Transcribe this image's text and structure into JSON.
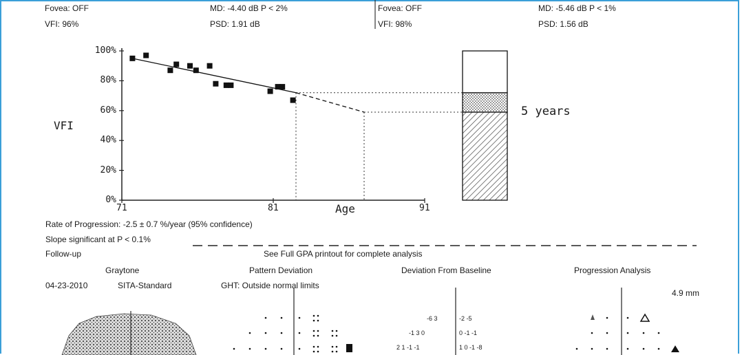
{
  "header": {
    "left": {
      "fovea": "Fovea: OFF",
      "vfi": "VFI: 96%",
      "md": "MD:  -4.40 dB  P < 2%",
      "psd": "PSD:  1.91 dB"
    },
    "right": {
      "fovea": "Fovea: OFF",
      "vfi": "VFI: 98%",
      "md": "MD:  -5.46 dB  P < 1%",
      "psd": "PSD:  1.56 dB"
    }
  },
  "chart_data": {
    "type": "scatter",
    "ylabel": "VFI",
    "xlabel": "Age",
    "xlim": [
      71,
      91
    ],
    "ylim": [
      0,
      100
    ],
    "xticks": [
      "71",
      "81",
      "91"
    ],
    "yticks": [
      "0%",
      "20%",
      "40%",
      "60%",
      "80%",
      "100%"
    ],
    "series": [
      {
        "x": [
          71.7,
          72.6,
          74.2,
          74.6,
          75.5,
          75.9,
          76.8,
          77.2,
          77.9,
          78.2,
          80.8,
          81.3,
          81.6,
          82.3
        ],
        "y": [
          95,
          97,
          87,
          91,
          90,
          87,
          90,
          78,
          77,
          77,
          73,
          76,
          76,
          67
        ]
      }
    ],
    "trend": {
      "x": [
        71.7,
        82.5,
        87
      ],
      "y": [
        95,
        72,
        59
      ]
    },
    "projection_years": "5 years",
    "bar": {
      "projected_low": 59,
      "current": 72,
      "top": 100
    }
  },
  "rate": "Rate of Progression: -2.5 ± 0.7 %/year (95% confidence)",
  "slope": "Slope significant at P < 0.1%",
  "followup": "Follow-up",
  "see_full": "See Full GPA printout for complete analysis",
  "panels": {
    "graytone": "Graytone",
    "pattern": "Pattern Deviation",
    "deviation": "Deviation From Baseline",
    "progression": "Progression Analysis"
  },
  "date": "04-23-2010",
  "strategy": "SITA-Standard",
  "ght": "GHT: Outside normal limits",
  "pupil": "4.9 mm",
  "dev_values": {
    "r1l": "-6  3",
    "r1r": "-2  -5",
    "r2l": "-1  3  0",
    "r2r": "0  -1  -1",
    "r3l": "2  1  -1  -1",
    "r3r": "1  0  -1  -8"
  }
}
